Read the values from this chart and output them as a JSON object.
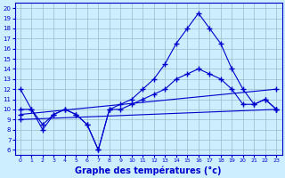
{
  "bg_color": "#cceeff",
  "line_color": "#0000cc",
  "grid_color": "#99bbcc",
  "xlabel": "Graphe des températures (°c)",
  "xlabel_fontsize": 7,
  "yticks": [
    6,
    7,
    8,
    9,
    10,
    11,
    12,
    13,
    14,
    15,
    16,
    17,
    18,
    19,
    20
  ],
  "xticks": [
    0,
    1,
    2,
    3,
    4,
    5,
    6,
    7,
    8,
    9,
    10,
    11,
    12,
    13,
    14,
    15,
    16,
    17,
    18,
    19,
    20,
    21,
    22,
    23
  ],
  "ylim": [
    5.5,
    20.5
  ],
  "xlim": [
    -0.5,
    23.5
  ],
  "series": [
    {
      "x": [
        0,
        1,
        2,
        3,
        4,
        5,
        6,
        7,
        8,
        9,
        10,
        11,
        12,
        13,
        14,
        15,
        16,
        17,
        18,
        19,
        20,
        21,
        22,
        23
      ],
      "y": [
        12,
        10,
        8,
        9.5,
        10,
        9.5,
        8.5,
        6,
        10,
        10.5,
        11,
        12,
        13,
        14.5,
        16.5,
        18,
        19.5,
        18,
        16.5,
        14,
        12,
        10.5,
        11,
        10
      ]
    },
    {
      "x": [
        0,
        1,
        2,
        3,
        4,
        5,
        6,
        7,
        8,
        9,
        10,
        11,
        12,
        13,
        14,
        15,
        16,
        17,
        18,
        19,
        20,
        21,
        22,
        23
      ],
      "y": [
        10,
        10,
        8.5,
        9.5,
        10,
        9.5,
        8.5,
        6,
        10,
        10,
        10.5,
        11,
        11.5,
        12,
        13,
        13.5,
        14,
        13.5,
        13,
        12,
        10.5,
        10.5,
        11,
        10
      ]
    },
    {
      "x": [
        0,
        23
      ],
      "y": [
        9.5,
        12
      ]
    },
    {
      "x": [
        0,
        23
      ],
      "y": [
        9,
        10
      ]
    }
  ]
}
